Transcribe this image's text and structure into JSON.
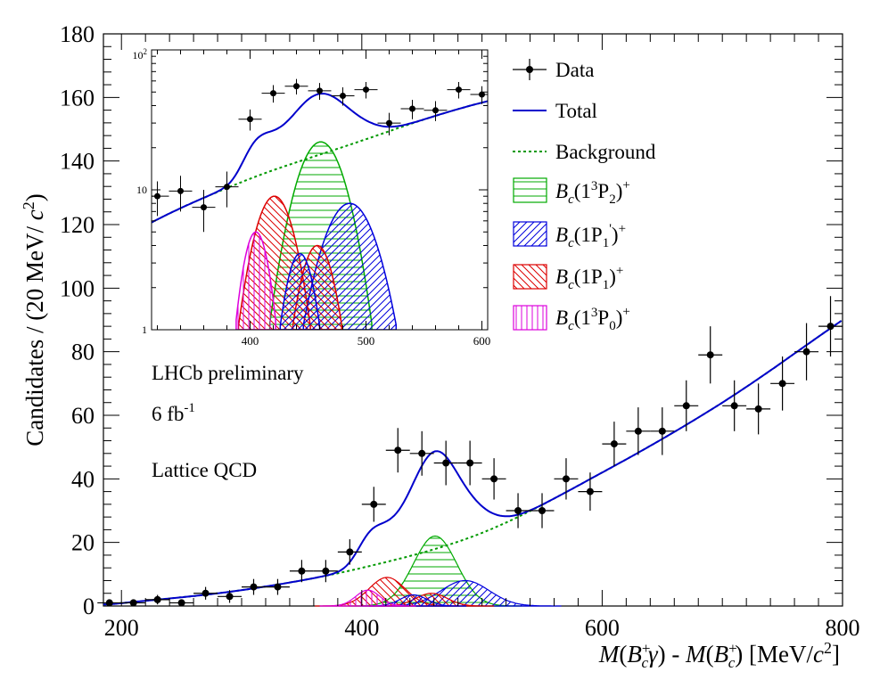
{
  "chart_data": {
    "type": "scatter",
    "xlabel_parts": {
      "m1": "M",
      "b1": "B",
      "sup1": "+",
      "sub1": "c",
      "gamma": "γ",
      "dash": " - ",
      "m2": "M",
      "b2": "B",
      "sup2": "+",
      "sub2": "c",
      "unit_open": "[MeV/",
      "unit_c": "c",
      "unit_pow": "2",
      "unit_close": "]"
    },
    "ylabel_parts": {
      "main": "Candidates / (20 MeV/ ",
      "c": "c",
      "pow": "2",
      "close": ")"
    },
    "xlim": [
      185,
      800
    ],
    "ylim": [
      0,
      180
    ],
    "x_ticks": [
      200,
      400,
      600,
      800
    ],
    "y_ticks": [
      0,
      20,
      40,
      60,
      80,
      100,
      120,
      140,
      160,
      180
    ],
    "annotations": [
      {
        "id": "lhcb",
        "text": "LHCb preliminary"
      },
      {
        "id": "lumi",
        "text": "6 fb",
        "sup": "-1"
      },
      {
        "id": "lattice",
        "text": "Lattice QCD"
      }
    ],
    "legend": {
      "placement": "top-right",
      "entries": [
        {
          "id": "data",
          "label": "Data"
        },
        {
          "id": "total",
          "label": "Total",
          "color": "#0000cc"
        },
        {
          "id": "bkg",
          "label": "Background",
          "color": "#009900"
        },
        {
          "id": "p2",
          "label_b": "B",
          "label_sub": "c",
          "label_rest": "(1",
          "label_sup3": "3",
          "label_P": "P",
          "label_sub2": "2",
          "label_close": ")",
          "label_plus": "+",
          "color": "#00aa00"
        },
        {
          "id": "p1p",
          "label_b": "B",
          "label_sub": "c",
          "label_rest": "(1P",
          "label_sub2": "1",
          "label_prime": "'",
          "label_close": ")",
          "label_plus": "+",
          "color": "#0000dd"
        },
        {
          "id": "p1",
          "label_b": "B",
          "label_sub": "c",
          "label_rest": "(1P",
          "label_sub2": "1",
          "label_close": ")",
          "label_plus": "+",
          "color": "#dd0000"
        },
        {
          "id": "p0",
          "label_b": "B",
          "label_sub": "c",
          "label_rest": "(1",
          "label_sup3": "3",
          "label_P": "P",
          "label_sub2": "0",
          "label_close": ")",
          "label_plus": "+",
          "color": "#dd00dd"
        }
      ]
    },
    "data_points": [
      {
        "x": 190,
        "y": 1,
        "err": 1
      },
      {
        "x": 210,
        "y": 1,
        "err": 1
      },
      {
        "x": 230,
        "y": 2,
        "err": 1.5
      },
      {
        "x": 250,
        "y": 1,
        "err": 1
      },
      {
        "x": 270,
        "y": 4,
        "err": 2
      },
      {
        "x": 290,
        "y": 3,
        "err": 2
      },
      {
        "x": 310,
        "y": 6,
        "err": 2.5
      },
      {
        "x": 330,
        "y": 6,
        "err": 2.5
      },
      {
        "x": 350,
        "y": 11,
        "err": 3.5
      },
      {
        "x": 370,
        "y": 11,
        "err": 3.5
      },
      {
        "x": 390,
        "y": 17,
        "err": 4
      },
      {
        "x": 410,
        "y": 32,
        "err": 5.5
      },
      {
        "x": 430,
        "y": 49,
        "err": 7
      },
      {
        "x": 450,
        "y": 48,
        "err": 7
      },
      {
        "x": 470,
        "y": 45,
        "err": 7
      },
      {
        "x": 490,
        "y": 45,
        "err": 7
      },
      {
        "x": 510,
        "y": 40,
        "err": 6.5
      },
      {
        "x": 530,
        "y": 30,
        "err": 5.5
      },
      {
        "x": 550,
        "y": 30,
        "err": 5.5
      },
      {
        "x": 570,
        "y": 40,
        "err": 6.5
      },
      {
        "x": 590,
        "y": 36,
        "err": 6
      },
      {
        "x": 610,
        "y": 51,
        "err": 7
      },
      {
        "x": 630,
        "y": 55,
        "err": 7.5
      },
      {
        "x": 650,
        "y": 55,
        "err": 7.5
      },
      {
        "x": 670,
        "y": 63,
        "err": 8
      },
      {
        "x": 690,
        "y": 79,
        "err": 9
      },
      {
        "x": 710,
        "y": 63,
        "err": 8
      },
      {
        "x": 730,
        "y": 62,
        "err": 8
      },
      {
        "x": 750,
        "y": 70,
        "err": 8.5
      },
      {
        "x": 770,
        "y": 80,
        "err": 9
      },
      {
        "x": 790,
        "y": 88,
        "err": 9.5
      }
    ],
    "x_bin_half_width": 10,
    "background_model": {
      "type": "quadratic",
      "x0": 185,
      "points": [
        [
          190,
          0.5
        ],
        [
          300,
          5
        ],
        [
          400,
          12
        ],
        [
          500,
          23
        ],
        [
          600,
          42
        ],
        [
          700,
          64
        ],
        [
          800,
          90
        ]
      ]
    },
    "signal_components": [
      {
        "id": "p2",
        "mean": 461,
        "sigma": 18,
        "amp": 22,
        "hatch": "horizontal",
        "color": "#00aa00"
      },
      {
        "id": "p1p",
        "mean": 486,
        "sigma": 20,
        "amp": 8,
        "hatch": "diagonal-up",
        "color": "#0000dd"
      },
      {
        "id": "p1",
        "mean": 421,
        "sigma": 15,
        "amp": 9,
        "hatch": "diagonal-down",
        "color": "#dd0000"
      },
      {
        "id": "p1b",
        "mean": 458,
        "sigma": 13,
        "amp": 4,
        "hatch": "diagonal-down",
        "color": "#dd0000"
      },
      {
        "id": "p1pb",
        "mean": 443,
        "sigma": 11,
        "amp": 3.5,
        "hatch": "diagonal-up",
        "color": "#0000dd"
      },
      {
        "id": "p0",
        "mean": 405,
        "sigma": 10,
        "amp": 5,
        "hatch": "vertical",
        "color": "#dd00dd"
      }
    ],
    "inset": {
      "xlim": [
        315,
        605
      ],
      "ylim_log": [
        1,
        100
      ],
      "x_ticks": [
        400,
        500,
        600
      ],
      "y_tick_labels": [
        {
          "v": 1,
          "t": "1"
        },
        {
          "v": 10,
          "t": "10"
        },
        {
          "v": 100,
          "t": "10",
          "sup": "2"
        }
      ],
      "scale": "log",
      "data_points": [
        {
          "x": 320,
          "y": 9,
          "err": 2.5
        },
        {
          "x": 340,
          "y": 9.8,
          "err": 2.8
        },
        {
          "x": 360,
          "y": 7.5,
          "err": 2.5
        },
        {
          "x": 380,
          "y": 10.5,
          "err": 3
        },
        {
          "x": 400,
          "y": 32,
          "err": 5.5
        },
        {
          "x": 420,
          "y": 49,
          "err": 7
        },
        {
          "x": 440,
          "y": 55,
          "err": 7
        },
        {
          "x": 460,
          "y": 51,
          "err": 7
        },
        {
          "x": 480,
          "y": 47,
          "err": 7
        },
        {
          "x": 500,
          "y": 52,
          "err": 7
        },
        {
          "x": 520,
          "y": 30,
          "err": 5.5
        },
        {
          "x": 540,
          "y": 38,
          "err": 6
        },
        {
          "x": 560,
          "y": 37,
          "err": 6
        },
        {
          "x": 580,
          "y": 52,
          "err": 7
        },
        {
          "x": 600,
          "y": 48,
          "err": 7
        }
      ]
    }
  }
}
